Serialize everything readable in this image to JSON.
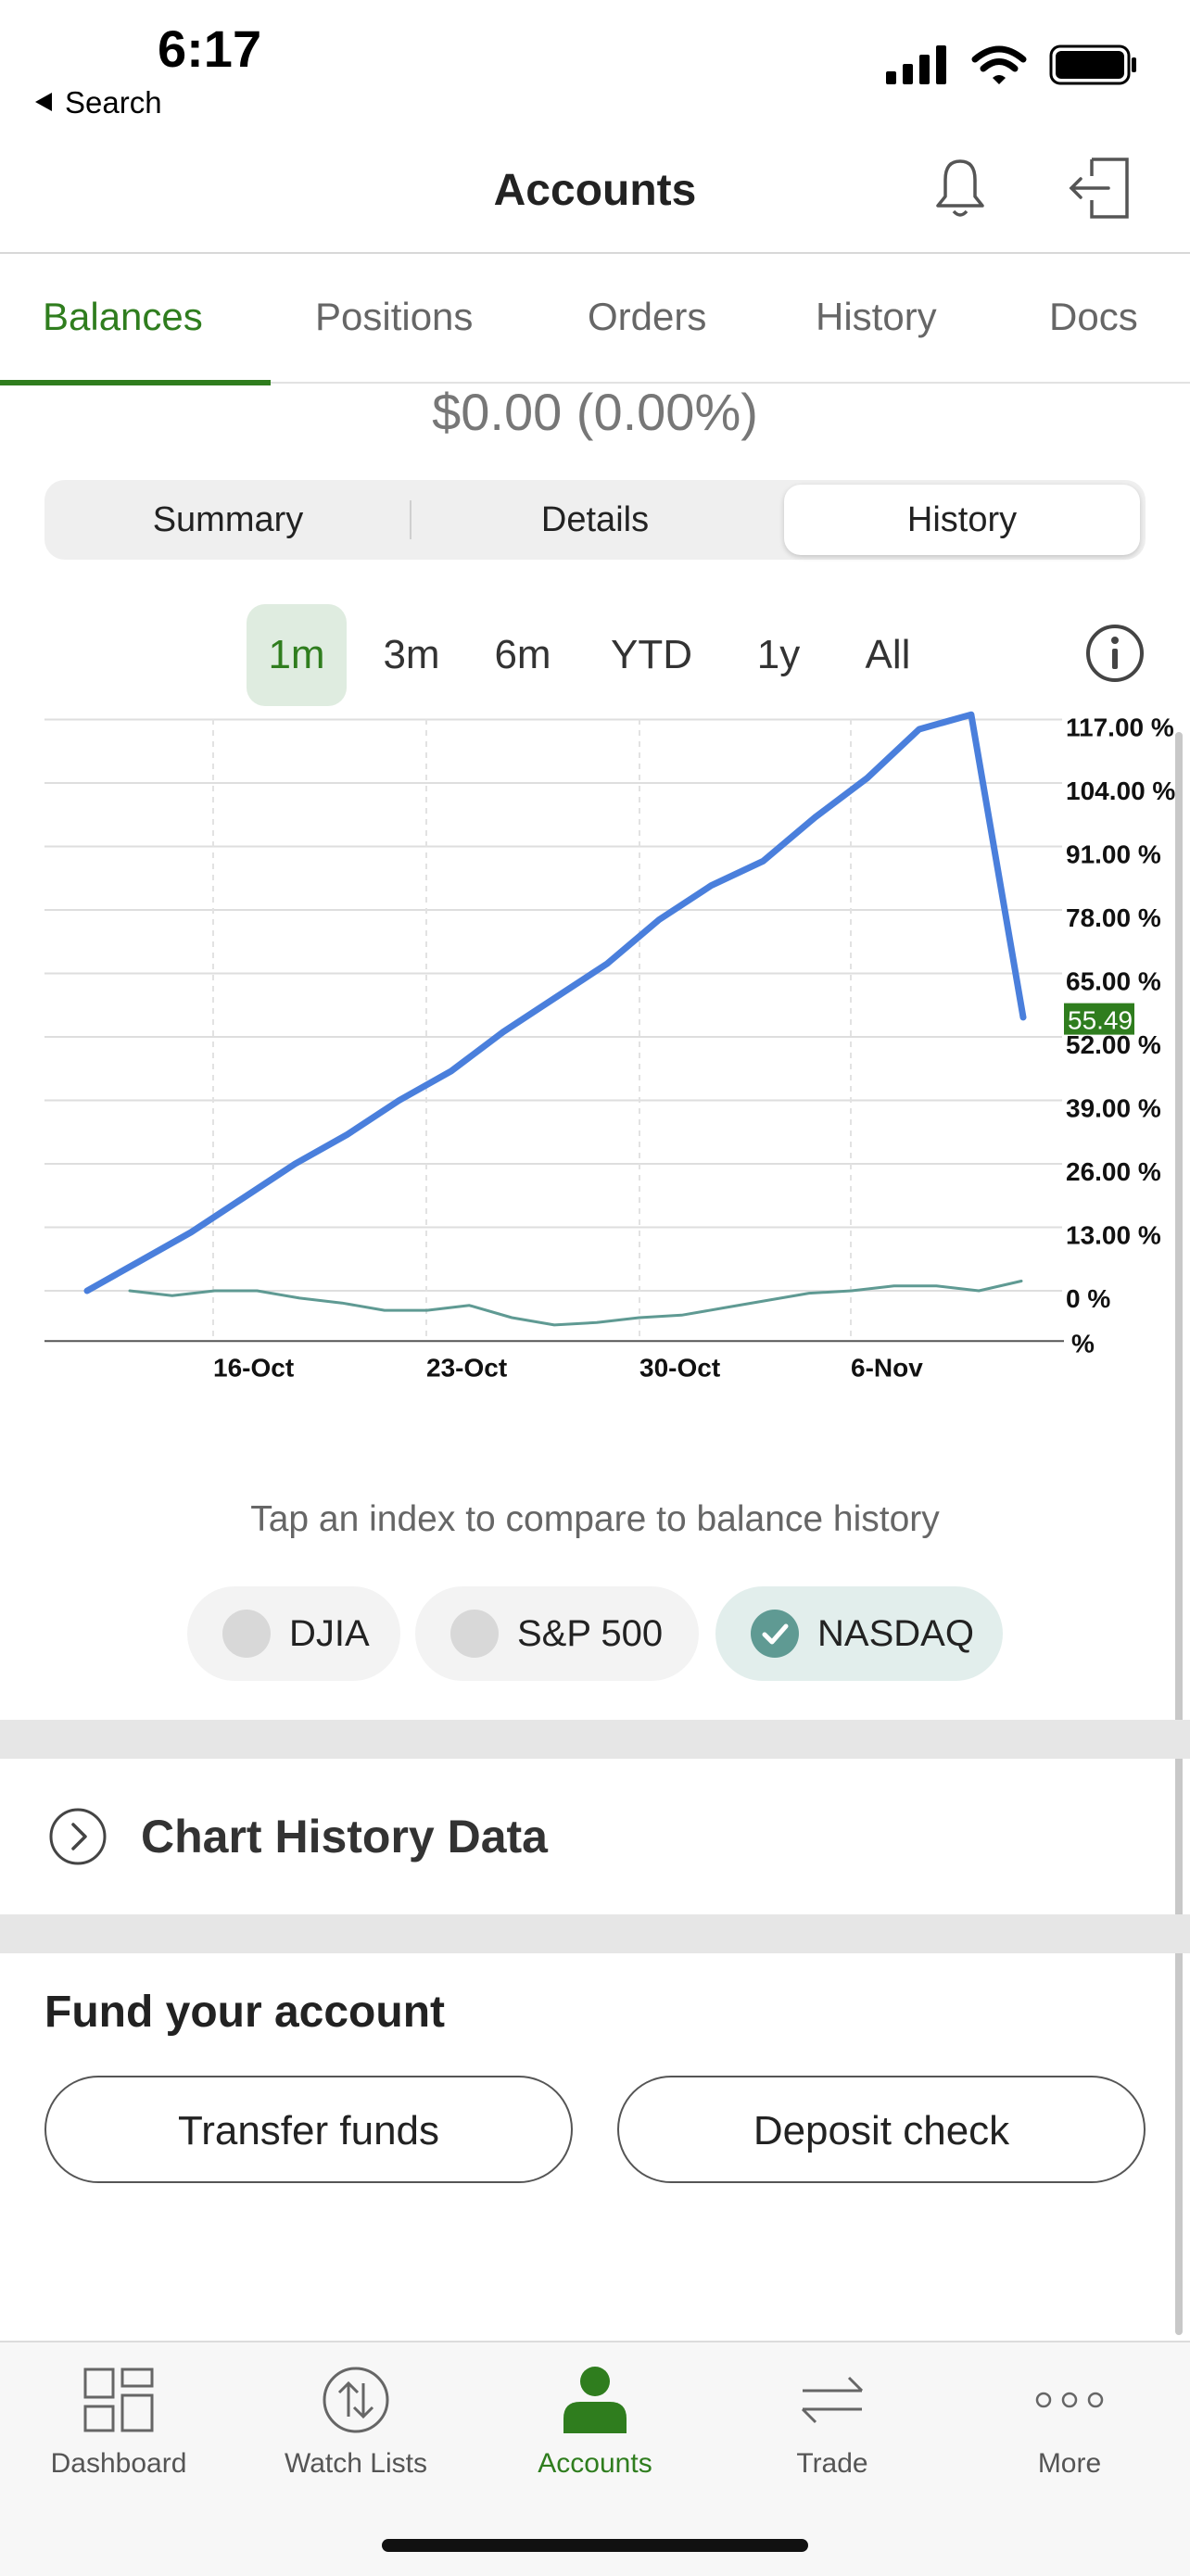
{
  "status": {
    "time": "6:17",
    "back_label": "Search"
  },
  "header": {
    "title": "Accounts"
  },
  "tabs": [
    {
      "label": "Balances"
    },
    {
      "label": "Positions"
    },
    {
      "label": "Orders"
    },
    {
      "label": "History"
    },
    {
      "label": "Docs"
    }
  ],
  "balance": {
    "gain": "$0.00 (0.00%)"
  },
  "segments": [
    {
      "label": "Summary"
    },
    {
      "label": "Details"
    },
    {
      "label": "History"
    }
  ],
  "ranges": [
    {
      "label": "1m"
    },
    {
      "label": "3m"
    },
    {
      "label": "6m"
    },
    {
      "label": "YTD"
    },
    {
      "label": "1y"
    },
    {
      "label": "All"
    }
  ],
  "chart_data": {
    "type": "line",
    "x_ticks": [
      "16-Oct",
      "23-Oct",
      "30-Oct",
      "6-Nov"
    ],
    "y_ticks": [
      "117.00 %",
      "104.00 %",
      "91.00 %",
      "78.00 %",
      "65.00 %",
      "52.00 %",
      "39.00 %",
      "26.00 %",
      "13.00 %",
      "0 %",
      "%"
    ],
    "current_value_label": "55.49",
    "ylim": [
      -10,
      117
    ],
    "series": [
      {
        "values": [
          0,
          6,
          12,
          19,
          26,
          32,
          39,
          45,
          53,
          60,
          67,
          76,
          83,
          88,
          97,
          105,
          115,
          118,
          56
        ],
        "color": "#4a7fdc"
      },
      {
        "values": [
          0,
          -1,
          0,
          0,
          -1.5,
          -2.5,
          -4,
          -4,
          -3,
          -5.5,
          -7,
          -6.5,
          -5.5,
          -5,
          -3.5,
          -2,
          -0.5,
          0,
          1,
          1,
          0,
          2
        ],
        "color": "#5f9a93"
      }
    ],
    "grid": true
  },
  "compare": {
    "prompt": "Tap an index to compare to balance history",
    "indexes": [
      {
        "label": "DJIA"
      },
      {
        "label": "S&P 500"
      },
      {
        "label": "NASDAQ"
      }
    ]
  },
  "chart_history": {
    "label": "Chart History Data"
  },
  "fund": {
    "title": "Fund your account",
    "transfer_label": "Transfer funds",
    "deposit_label": "Deposit check"
  },
  "tabbar": [
    {
      "label": "Dashboard",
      "icon": "grid-icon"
    },
    {
      "label": "Watch Lists",
      "icon": "updown-icon"
    },
    {
      "label": "Accounts",
      "icon": "person-icon"
    },
    {
      "label": "Trade",
      "icon": "swap-icon"
    },
    {
      "label": "More",
      "icon": "dots-icon"
    }
  ],
  "colors": {
    "accent": "#2f7d1e",
    "chart_line": "#4a7fdc",
    "index_line": "#5f9a93"
  }
}
